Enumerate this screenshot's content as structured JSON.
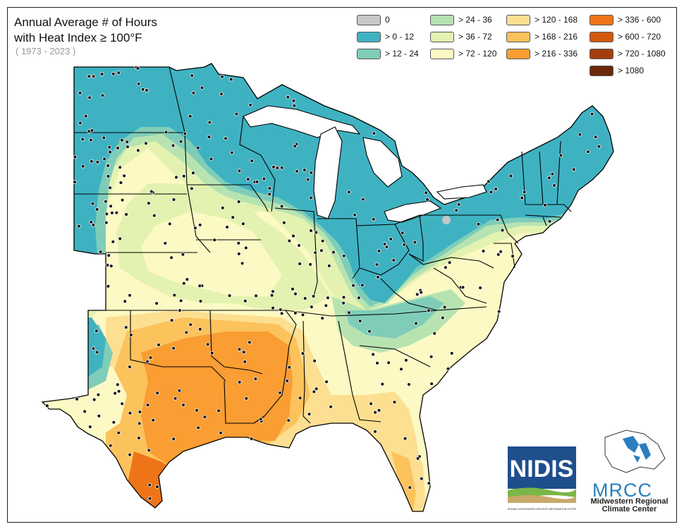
{
  "title": {
    "line1": "Annual Average # of Hours",
    "line2": "with Heat Index ≥ 100°F",
    "period": "( 1973 - 2023 )"
  },
  "legend": [
    {
      "label": "0",
      "color": "#c8c8c8"
    },
    {
      "label": "> 0 - 12",
      "color": "#3fb2c2"
    },
    {
      "label": "> 12 - 24",
      "color": "#7fcdb8"
    },
    {
      "label": "> 24 - 36",
      "color": "#b7e3b1"
    },
    {
      "label": "> 36 - 72",
      "color": "#e3f2b0"
    },
    {
      "label": "> 72 - 120",
      "color": "#fdf9c4"
    },
    {
      "label": "> 120 - 168",
      "color": "#fddf91"
    },
    {
      "label": "> 168 - 216",
      "color": "#fcc25c"
    },
    {
      "label": "> 216 - 336",
      "color": "#fa9d32"
    },
    {
      "label": "> 336 - 600",
      "color": "#ee7417"
    },
    {
      "label": "> 600 - 720",
      "color": "#d4580c"
    },
    {
      "label": "> 720 - 1080",
      "color": "#a33e0c"
    },
    {
      "label": "> 1080",
      "color": "#6b2809"
    }
  ],
  "logos": {
    "nidis_text": "NIDIS",
    "nidis_caption": "NATIONAL INTEGRATED DROUGHT INFORMATION SYSTEM",
    "mrcc_text": "MRCC",
    "mrcc_caption_line1": "Midwestern Regional",
    "mrcc_caption_line2": "Climate Center"
  }
}
